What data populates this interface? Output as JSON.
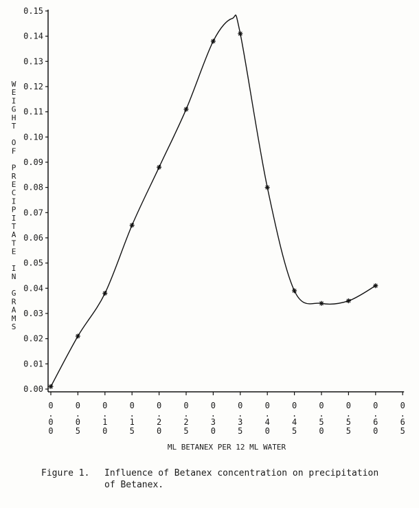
{
  "chart_data": {
    "type": "line",
    "title": "",
    "xlabel": "ML BETANEX PER 12 ML WATER",
    "ylabel": "WEIGHT OF PRECIPITATE IN GRAMS",
    "x": [
      0.0,
      0.05,
      0.1,
      0.15,
      0.2,
      0.25,
      0.3,
      0.35,
      0.4,
      0.45,
      0.5,
      0.55,
      0.6
    ],
    "series": [
      {
        "name": "Weight of precipitate",
        "marker": "asterisk",
        "smoothed": true,
        "values": [
          0.001,
          0.021,
          0.038,
          0.065,
          0.088,
          0.111,
          0.138,
          0.141,
          0.08,
          0.039,
          0.034,
          0.035,
          0.041
        ]
      }
    ],
    "curve_peak": {
      "x": 0.335,
      "y": 0.147
    },
    "xlim": [
      0.0,
      0.65
    ],
    "ylim": [
      0.0,
      0.15
    ],
    "x_ticks": [
      "0.00",
      "0.05",
      "0.10",
      "0.15",
      "0.20",
      "0.25",
      "0.30",
      "0.35",
      "0.40",
      "0.45",
      "0.50",
      "0.55",
      "0.60",
      "0.65"
    ],
    "y_ticks": [
      "0.00",
      "0.01",
      "0.02",
      "0.03",
      "0.04",
      "0.05",
      "0.06",
      "0.07",
      "0.08",
      "0.09",
      "0.10",
      "0.11",
      "0.12",
      "0.13",
      "0.14",
      "0.15"
    ],
    "grid": false,
    "legend": "none"
  },
  "axis": {
    "y_title_words": [
      "WEIGHT",
      "OF",
      "PRECIPITATE",
      "IN",
      "GRAMS"
    ],
    "x_title": "ML BETANEX PER 12 ML WATER"
  },
  "caption": {
    "label": "Figure 1.",
    "line1": "Influence of Betanex concentration on precipitation",
    "line2": "of Betanex."
  }
}
